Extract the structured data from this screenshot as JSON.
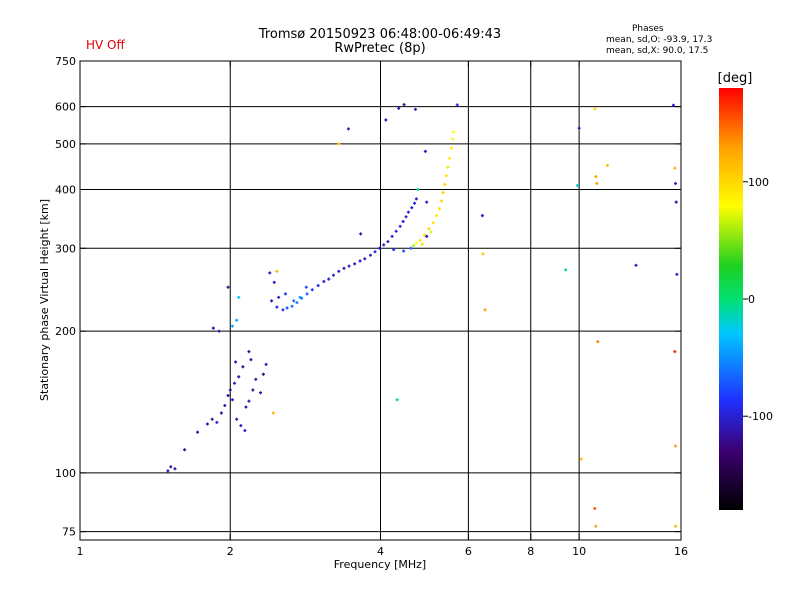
{
  "header": {
    "title": "Tromsø 20150923 06:48:00-06:49:43",
    "subtitle": "RwPretec (8p)",
    "hv_status": "HV Off",
    "stats_heading": "Phases",
    "stats_o": "mean, sd,O: -93.9, 17.3",
    "stats_x": "mean, sd,X:  90.0, 17.5"
  },
  "colors": {
    "hv_status": "#e00000",
    "colormap": [
      "#000000",
      "#3b0070",
      "#2030ff",
      "#00c8ff",
      "#00e070",
      "#20d020",
      "#ffff00",
      "#ffa000",
      "#ff0000"
    ]
  },
  "chart_data": {
    "type": "scatter",
    "xlabel": "Frequency [MHz]",
    "ylabel": "Stationary phase Virtual Height [km]",
    "x_scale": "log",
    "y_scale": "log",
    "xlim": [
      1,
      16
    ],
    "ylim": [
      72,
      750
    ],
    "x_ticks": [
      1,
      2,
      4,
      6,
      8,
      10,
      16
    ],
    "y_ticks": [
      75,
      100,
      200,
      300,
      400,
      500,
      600,
      750
    ],
    "x_grid": [
      2,
      4,
      6,
      8,
      10
    ],
    "y_grid": [
      75,
      100,
      200,
      300,
      400,
      500,
      600
    ],
    "colorbar": {
      "label": "[deg]",
      "min": -180,
      "max": 180,
      "ticks": [
        100,
        0,
        -100
      ]
    },
    "series": [
      {
        "points": [
          [
            1.5,
            101,
            -115
          ],
          [
            1.52,
            103,
            -110
          ],
          [
            1.55,
            102,
            -112
          ],
          [
            1.62,
            112,
            -118
          ],
          [
            1.72,
            122,
            -110
          ],
          [
            1.8,
            127,
            -105
          ],
          [
            1.84,
            130,
            -115
          ],
          [
            1.88,
            128,
            -100
          ],
          [
            1.92,
            134,
            -118
          ],
          [
            1.95,
            139,
            -108
          ],
          [
            1.98,
            146,
            -112
          ],
          [
            2.0,
            150,
            -120
          ],
          [
            2.04,
            155,
            -98
          ],
          [
            2.08,
            160,
            -115
          ],
          [
            2.12,
            168,
            -122
          ],
          [
            2.02,
            143,
            -100
          ],
          [
            2.06,
            130,
            -110
          ],
          [
            2.1,
            126,
            -105
          ],
          [
            2.18,
            142,
            -112
          ],
          [
            2.22,
            150,
            -118
          ],
          [
            2.25,
            158,
            -108
          ],
          [
            2.3,
            148,
            -112
          ],
          [
            2.33,
            162,
            -120
          ],
          [
            2.36,
            170,
            -110
          ],
          [
            2.15,
            138,
            -115
          ],
          [
            2.05,
            172,
            -104
          ],
          [
            2.14,
            123,
            -96
          ],
          [
            1.98,
            248,
            -115
          ],
          [
            1.85,
            203,
            -112
          ],
          [
            2.02,
            205,
            -40
          ],
          [
            2.42,
            232,
            -110
          ],
          [
            2.48,
            225,
            -98
          ],
          [
            2.55,
            222,
            -90
          ],
          [
            2.6,
            224,
            -70
          ],
          [
            2.66,
            226,
            -62
          ],
          [
            2.72,
            230,
            -55
          ],
          [
            2.78,
            235,
            -60
          ],
          [
            2.85,
            240,
            -72
          ],
          [
            2.92,
            245,
            -85
          ],
          [
            3.0,
            250,
            -92
          ],
          [
            2.5,
            236,
            -100
          ],
          [
            2.58,
            240,
            -88
          ],
          [
            2.68,
            232,
            -66
          ],
          [
            2.76,
            236,
            -50
          ],
          [
            2.84,
            248,
            -78
          ],
          [
            2.45,
            254,
            -105
          ],
          [
            2.4,
            266,
            -102
          ],
          [
            3.08,
            255,
            -95
          ],
          [
            3.15,
            258,
            -98
          ],
          [
            3.22,
            263,
            -100
          ],
          [
            3.3,
            268,
            -104
          ],
          [
            3.38,
            272,
            -108
          ],
          [
            3.46,
            275,
            -110
          ],
          [
            3.55,
            278,
            -112
          ],
          [
            3.64,
            282,
            -110
          ],
          [
            3.72,
            285,
            -106
          ],
          [
            3.82,
            290,
            -102
          ],
          [
            3.9,
            295,
            -98
          ],
          [
            3.98,
            300,
            -96
          ],
          [
            4.06,
            305,
            -100
          ],
          [
            4.14,
            310,
            -104
          ],
          [
            4.22,
            318,
            -100
          ],
          [
            4.3,
            326,
            -96
          ],
          [
            4.38,
            334,
            -98
          ],
          [
            4.44,
            342,
            -102
          ],
          [
            4.5,
            350,
            -105
          ],
          [
            4.55,
            358,
            -100
          ],
          [
            4.62,
            366,
            -96
          ],
          [
            4.68,
            374,
            -100
          ],
          [
            4.72,
            382,
            -104
          ],
          [
            4.25,
            298,
            -90
          ],
          [
            4.45,
            296,
            -78
          ],
          [
            4.6,
            300,
            -70
          ],
          [
            4.66,
            304,
            60
          ],
          [
            4.72,
            308,
            80
          ],
          [
            4.8,
            312,
            94
          ],
          [
            4.9,
            320,
            98
          ],
          [
            5.0,
            330,
            102
          ],
          [
            5.1,
            340,
            96
          ],
          [
            5.18,
            352,
            92
          ],
          [
            5.25,
            364,
            95
          ],
          [
            5.3,
            378,
            100
          ],
          [
            5.34,
            394,
            104
          ],
          [
            5.38,
            410,
            98
          ],
          [
            5.42,
            428,
            94
          ],
          [
            5.46,
            446,
            92
          ],
          [
            5.5,
            466,
            88
          ],
          [
            5.55,
            490,
            86
          ],
          [
            5.58,
            512,
            84
          ],
          [
            5.6,
            530,
            80
          ],
          [
            4.95,
            318,
            -110
          ],
          [
            5.05,
            325,
            70
          ],
          [
            4.85,
            306,
            96
          ],
          [
            3.3,
            500,
            110
          ],
          [
            3.45,
            538,
            -104
          ],
          [
            3.65,
            322,
            -112
          ],
          [
            4.1,
            562,
            -118
          ],
          [
            4.35,
            595,
            -110
          ],
          [
            4.46,
            606,
            -115
          ],
          [
            4.7,
            592,
            -104
          ],
          [
            4.75,
            400,
            -5
          ],
          [
            4.95,
            376,
            -98
          ],
          [
            4.92,
            482,
            -104
          ],
          [
            5.7,
            605,
            -96
          ],
          [
            6.4,
            352,
            -108
          ],
          [
            6.42,
            292,
            110
          ],
          [
            6.48,
            222,
            130
          ],
          [
            4.32,
            143,
            -8
          ],
          [
            9.4,
            270,
            -10
          ],
          [
            9.92,
            408,
            -22
          ],
          [
            10.0,
            540,
            -110
          ],
          [
            10.1,
            107,
            115
          ],
          [
            10.75,
            593,
            100
          ],
          [
            10.8,
            426,
            128
          ],
          [
            10.85,
            412,
            132
          ],
          [
            11.4,
            450,
            112
          ],
          [
            10.9,
            190,
            140
          ],
          [
            10.75,
            84,
            150
          ],
          [
            10.8,
            77,
            130
          ],
          [
            13.0,
            276,
            -110
          ],
          [
            15.45,
            604,
            -100
          ],
          [
            15.55,
            444,
            120
          ],
          [
            15.6,
            412,
            -98
          ],
          [
            15.65,
            376,
            -112
          ],
          [
            15.7,
            264,
            -104
          ],
          [
            15.55,
            181,
            170
          ],
          [
            15.6,
            114,
            130
          ],
          [
            15.6,
            77,
            120
          ],
          [
            2.48,
            268,
            120
          ],
          [
            2.08,
            236,
            -30
          ],
          [
            2.44,
            134,
            120
          ],
          [
            2.06,
            211,
            -40
          ],
          [
            2.18,
            181,
            -118
          ],
          [
            1.9,
            200,
            -116
          ],
          [
            2.2,
            174,
            -112
          ]
        ]
      }
    ]
  }
}
